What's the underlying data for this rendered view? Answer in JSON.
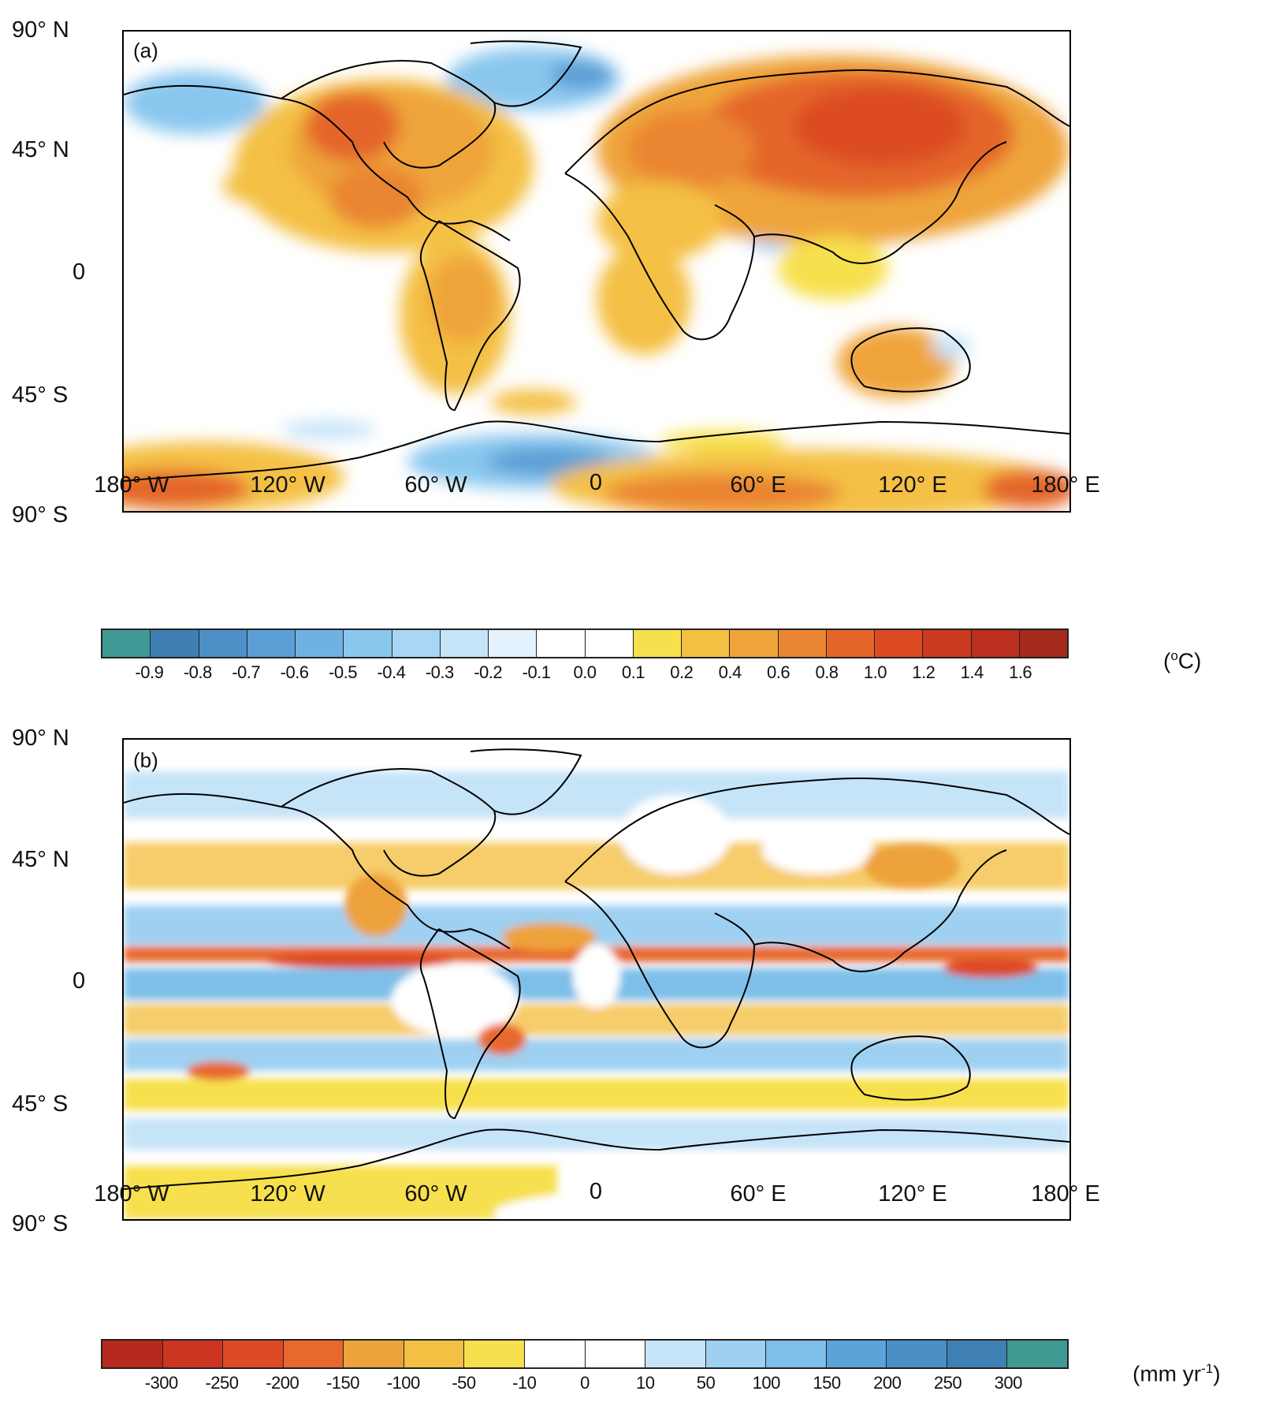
{
  "panels": [
    {
      "id": "a",
      "label": "(a)",
      "lat_labels": [
        "90° N",
        "45° N",
        "0",
        "45° S",
        "90° S"
      ],
      "lon_labels": [
        "180° W",
        "120° W",
        "60° W",
        "0",
        "60° E",
        "120° E",
        "180° E"
      ],
      "colorbar": {
        "colors": [
          "#3f9a95",
          "#3f7fb3",
          "#4d8fc7",
          "#5b9fd6",
          "#6fb2e2",
          "#8ac7ef",
          "#a8d6f4",
          "#c6e4f8",
          "#e3f2fc",
          "#ffffff",
          "#ffffff",
          "#f7e04e",
          "#f4c044",
          "#efa43b",
          "#ea8533",
          "#e46629",
          "#dc4b22",
          "#cb391f",
          "#ba2f1e",
          "#a42a1b"
        ],
        "tick_labels": [
          "-0.9",
          "-0.8",
          "-0.7",
          "-0.6",
          "-0.5",
          "-0.4",
          "-0.3",
          "-0.2",
          "-0.1",
          "0.0",
          "0.1",
          "0.2",
          "0.4",
          "0.6",
          "0.8",
          "1.0",
          "1.2",
          "1.4",
          "1.6"
        ],
        "unit_prefix": "(",
        "unit_sup": "o",
        "unit_main": "C)"
      }
    },
    {
      "id": "b",
      "label": "(b)",
      "lat_labels": [
        "90° N",
        "45° N",
        "0",
        "45° S",
        "90° S"
      ],
      "lon_labels": [
        "180° W",
        "120° W",
        "60° W",
        "0",
        "60° E",
        "120° E",
        "180° E"
      ],
      "colorbar": {
        "colors": [
          "#b52a1c",
          "#cc3521",
          "#dd4a25",
          "#e8692d",
          "#eea23a",
          "#f4c044",
          "#f7e04e",
          "#ffffff",
          "#ffffff",
          "#c6e4f8",
          "#9ed0f1",
          "#7dbfe9",
          "#5aa4da",
          "#4b8fc6",
          "#3f80b5",
          "#409a93"
        ],
        "tick_labels": [
          "-300",
          "-250",
          "-200",
          "-150",
          "-100",
          "-50",
          "-10",
          "0",
          "10",
          "50",
          "100",
          "150",
          "200",
          "250",
          "300"
        ],
        "unit_prefix": "(mm yr",
        "unit_sup": "-1",
        "unit_main": ")"
      }
    }
  ]
}
